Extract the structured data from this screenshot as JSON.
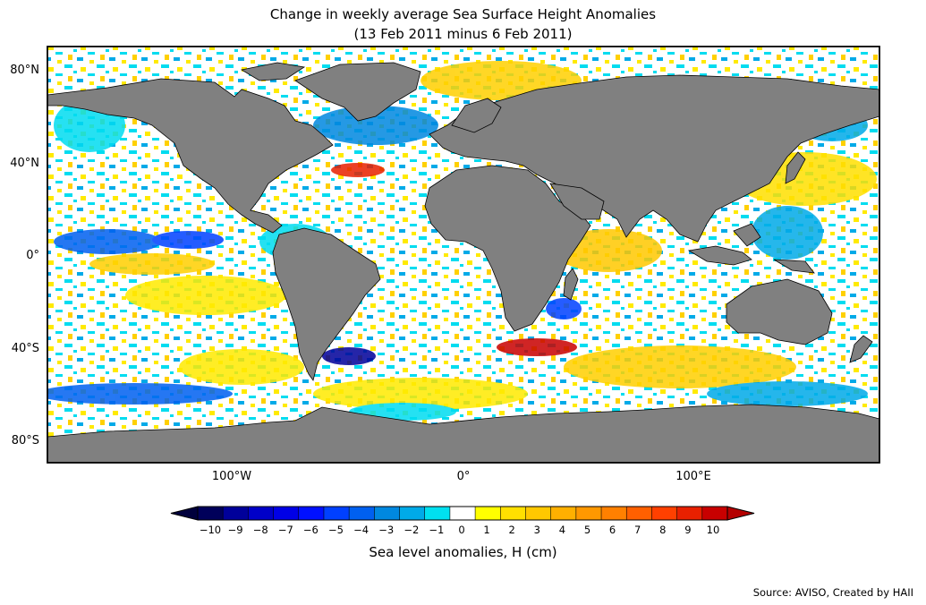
{
  "title": "Change in weekly average Sea Surface Height Anomalies",
  "subtitle": "(13 Feb 2011 minus 6 Feb 2011)",
  "map": {
    "lat_ticks": [
      "80°N",
      "40°N",
      "0°",
      "40°S",
      "80°S"
    ],
    "lon_ticks": [
      "100°W",
      "0°",
      "100°E"
    ],
    "land_color": "#808080",
    "ocean_zero_color": "#ffffff"
  },
  "colorbar": {
    "label": "Sea level anomalies, H (cm)",
    "ticks": [
      "−10",
      "−9",
      "−8",
      "−7",
      "−6",
      "−5",
      "−4",
      "−3",
      "−2",
      "−1",
      "0",
      "1",
      "2",
      "3",
      "4",
      "5",
      "6",
      "7",
      "8",
      "9",
      "10"
    ],
    "colors": [
      "#00005a",
      "#00009a",
      "#0000c8",
      "#0000e6",
      "#0010ff",
      "#0040ff",
      "#0060f0",
      "#0088e0",
      "#00aae8",
      "#00e0f0",
      "#ffffff",
      "#ffff00",
      "#ffe000",
      "#ffc800",
      "#ffb000",
      "#ff9800",
      "#ff8000",
      "#ff6000",
      "#ff4000",
      "#e82000",
      "#c80000"
    ],
    "under_color": "#00003c",
    "over_color": "#b40000"
  },
  "source": "Source: AVISO, Created by HAII"
}
